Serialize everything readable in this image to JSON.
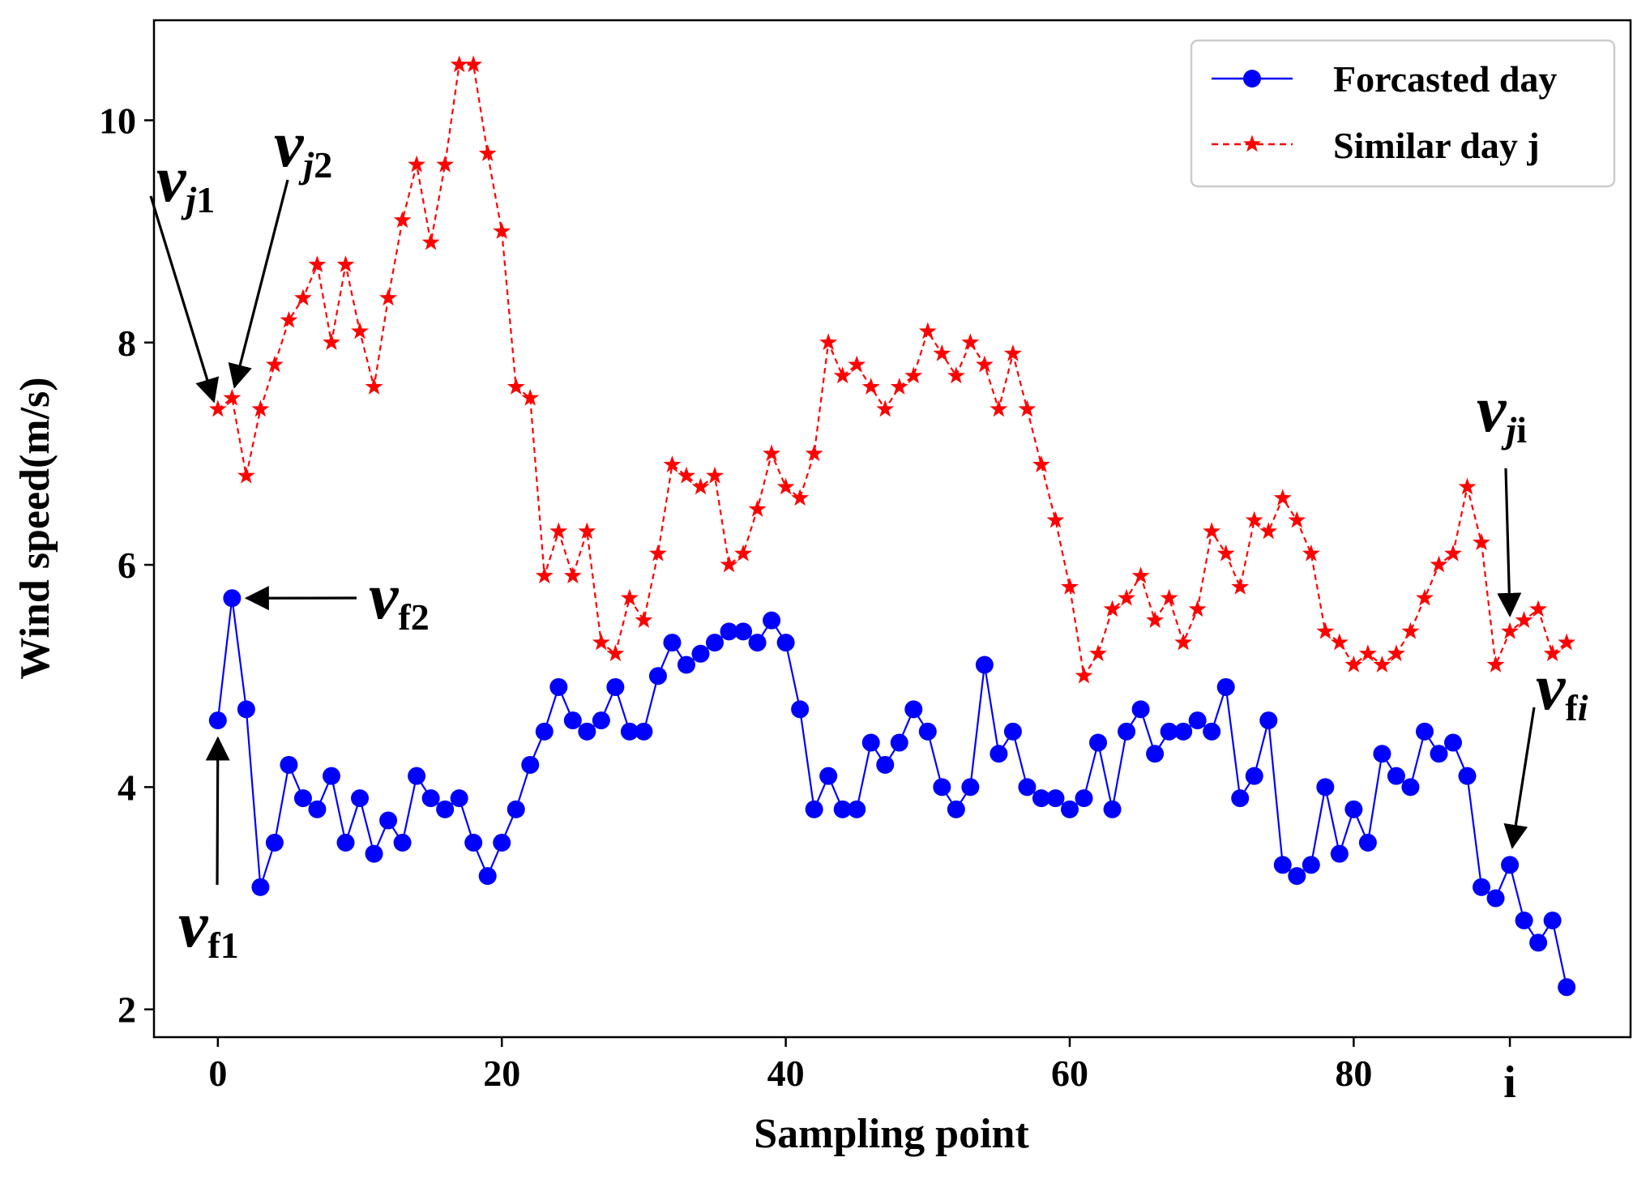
{
  "chart_data": {
    "type": "line",
    "title": "",
    "xlabel": "Sampling point",
    "ylabel": "Wind speed(m/s)",
    "xlim": [
      -4.5,
      99.5
    ],
    "ylim": [
      1.75,
      10.9
    ],
    "xticks": [
      0,
      20,
      40,
      60,
      80
    ],
    "yticks": [
      2,
      4,
      6,
      8,
      10
    ],
    "extra_xtick": {
      "x": 91,
      "label": "i"
    },
    "legend_position": "top-right",
    "series": [
      {
        "name": "Forcasted day",
        "color": "#0000ff",
        "line_style": "solid",
        "marker": "circle",
        "x": [
          0,
          1,
          2,
          3,
          4,
          5,
          6,
          7,
          8,
          9,
          10,
          11,
          12,
          13,
          14,
          15,
          16,
          17,
          18,
          19,
          20,
          21,
          22,
          23,
          24,
          25,
          26,
          27,
          28,
          29,
          30,
          31,
          32,
          33,
          34,
          35,
          36,
          37,
          38,
          39,
          40,
          41,
          42,
          43,
          44,
          45,
          46,
          47,
          48,
          49,
          50,
          51,
          52,
          53,
          54,
          55,
          56,
          57,
          58,
          59,
          60,
          61,
          62,
          63,
          64,
          65,
          66,
          67,
          68,
          69,
          70,
          71,
          72,
          73,
          74,
          75,
          76,
          77,
          78,
          79,
          80,
          81,
          82,
          83,
          84,
          85,
          86,
          87,
          88,
          89,
          90,
          91,
          92,
          93,
          94,
          95
        ],
        "values": [
          4.6,
          5.7,
          4.7,
          3.1,
          3.5,
          4.2,
          3.9,
          3.8,
          4.1,
          3.5,
          3.9,
          3.4,
          3.7,
          3.5,
          4.1,
          3.9,
          3.8,
          3.9,
          3.5,
          3.2,
          3.5,
          3.8,
          4.2,
          4.5,
          4.9,
          4.6,
          4.5,
          4.6,
          4.9,
          4.5,
          4.5,
          5.0,
          5.3,
          5.1,
          5.2,
          5.3,
          5.4,
          5.4,
          5.3,
          5.5,
          5.3,
          4.7,
          3.8,
          4.1,
          3.8,
          3.8,
          4.4,
          4.2,
          4.4,
          4.7,
          4.5,
          4.0,
          3.8,
          4.0,
          5.1,
          4.3,
          4.5,
          4.0,
          3.9,
          3.9,
          3.8,
          3.9,
          4.4,
          3.8,
          4.5,
          4.7,
          4.3,
          4.5,
          4.5,
          4.6,
          4.5,
          4.9,
          3.9,
          4.1,
          4.6,
          3.3,
          3.2,
          3.3,
          4.0,
          3.4,
          3.8,
          3.5,
          4.3,
          4.1,
          4.0,
          4.5,
          4.3,
          4.4,
          4.1,
          3.1,
          3.0,
          3.3,
          2.8,
          2.6,
          2.8,
          2.2
        ]
      },
      {
        "name": "Similar day j",
        "color": "#ff0000",
        "line_style": "dashed",
        "marker": "star",
        "x": [
          0,
          1,
          2,
          3,
          4,
          5,
          6,
          7,
          8,
          9,
          10,
          11,
          12,
          13,
          14,
          15,
          16,
          17,
          18,
          19,
          20,
          21,
          22,
          23,
          24,
          25,
          26,
          27,
          28,
          29,
          30,
          31,
          32,
          33,
          34,
          35,
          36,
          37,
          38,
          39,
          40,
          41,
          42,
          43,
          44,
          45,
          46,
          47,
          48,
          49,
          50,
          51,
          52,
          53,
          54,
          55,
          56,
          57,
          58,
          59,
          60,
          61,
          62,
          63,
          64,
          65,
          66,
          67,
          68,
          69,
          70,
          71,
          72,
          73,
          74,
          75,
          76,
          77,
          78,
          79,
          80,
          81,
          82,
          83,
          84,
          85,
          86,
          87,
          88,
          89,
          90,
          91,
          92,
          93,
          94,
          95
        ],
        "values": [
          7.4,
          7.5,
          6.8,
          7.4,
          7.8,
          8.2,
          8.4,
          8.7,
          8.0,
          8.7,
          8.1,
          7.6,
          8.4,
          9.1,
          9.6,
          8.9,
          9.6,
          10.5,
          10.5,
          9.7,
          9.0,
          7.6,
          7.5,
          5.9,
          6.3,
          5.9,
          6.3,
          5.3,
          5.2,
          5.7,
          5.5,
          6.1,
          6.9,
          6.8,
          6.7,
          6.8,
          6.0,
          6.1,
          6.5,
          7.0,
          6.7,
          6.6,
          7.0,
          8.0,
          7.7,
          7.8,
          7.6,
          7.4,
          7.6,
          7.7,
          8.1,
          7.9,
          7.7,
          8.0,
          7.8,
          7.4,
          7.9,
          7.4,
          6.9,
          6.4,
          5.8,
          5.0,
          5.2,
          5.6,
          5.7,
          5.9,
          5.5,
          5.7,
          5.3,
          5.6,
          6.3,
          6.1,
          5.8,
          6.4,
          6.3,
          6.6,
          6.4,
          6.1,
          5.4,
          5.3,
          5.1,
          5.2,
          5.1,
          5.2,
          5.4,
          5.7,
          6.0,
          6.1,
          6.7,
          6.2,
          5.1,
          5.4,
          5.5,
          5.6,
          5.2,
          5.3
        ]
      }
    ],
    "annotations": [
      {
        "main": "v",
        "sub": "j1",
        "sub_italic_index": 0,
        "target_x": 0,
        "target_series": 1
      },
      {
        "main": "v",
        "sub": "j2",
        "sub_italic_index": 0,
        "target_x": 1,
        "target_series": 1
      },
      {
        "main": "v",
        "sub": "f2",
        "sub_italic_index": -1,
        "target_x": 1,
        "target_series": 0
      },
      {
        "main": "v",
        "sub": "f1",
        "sub_italic_index": -1,
        "target_x": 0,
        "target_series": 0
      },
      {
        "main": "v",
        "sub": "ji",
        "sub_italic_index": 0,
        "target_x": 91,
        "target_series": 1
      },
      {
        "main": "v",
        "sub": "fi",
        "sub_italic_index": 1,
        "target_x": 91,
        "target_series": 0
      }
    ]
  }
}
